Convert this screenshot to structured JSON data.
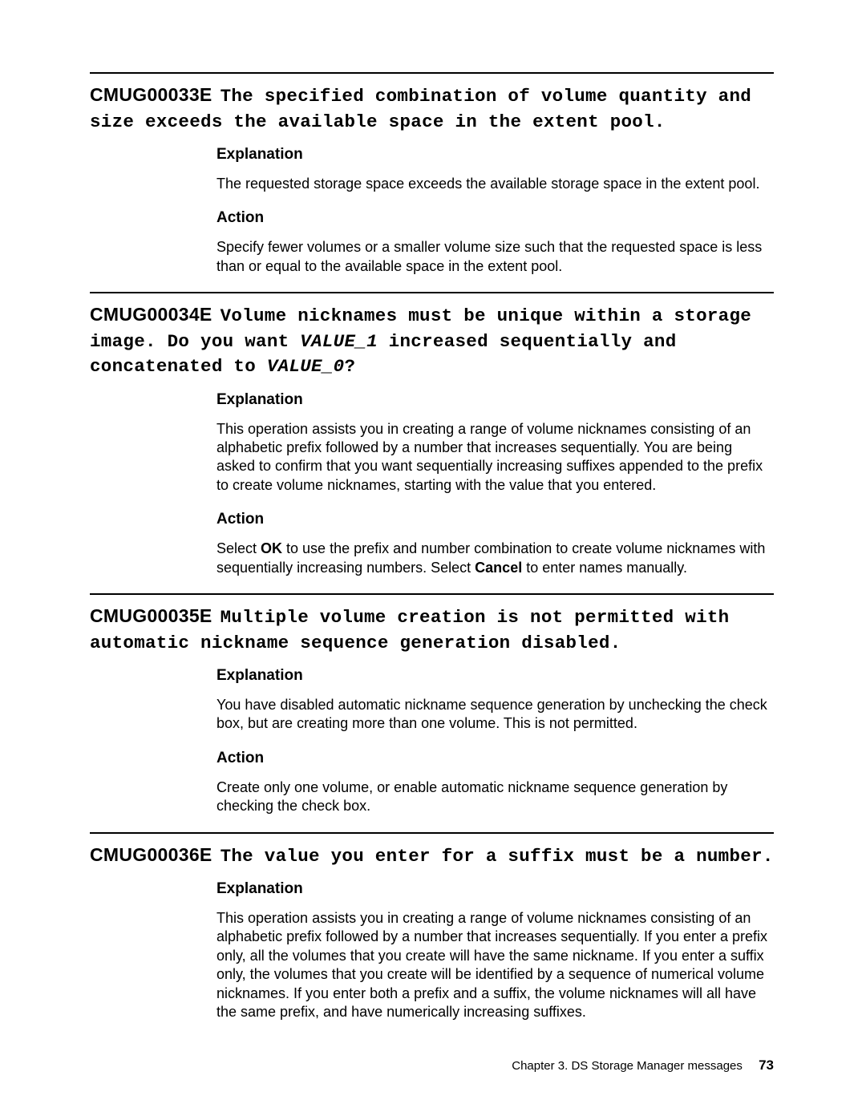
{
  "entries": [
    {
      "code": "CMUG00033E",
      "title_parts": [
        {
          "t": "The specified combination of volume quantity and size exceeds the available space in the extent pool.",
          "style": "plain"
        }
      ],
      "sections": [
        {
          "heading": "Explanation",
          "html": "The requested storage space exceeds the available storage space in the extent pool."
        },
        {
          "heading": "Action",
          "html": "Specify fewer volumes or a smaller volume size such that the requested space is less than or equal to the available space in the extent pool."
        }
      ]
    },
    {
      "code": "CMUG00034E",
      "title_parts": [
        {
          "t": "Volume nicknames must be unique within a storage image. Do you want ",
          "style": "plain"
        },
        {
          "t": "VALUE_1",
          "style": "var"
        },
        {
          "t": " increased sequentially and concatenated to ",
          "style": "plain"
        },
        {
          "t": "VALUE_0",
          "style": "var"
        },
        {
          "t": "?",
          "style": "plain"
        }
      ],
      "sections": [
        {
          "heading": "Explanation",
          "html": "This operation assists you in creating a range of volume nicknames consisting of an alphabetic prefix followed by a number that increases sequentially. You are being asked to confirm that you want sequentially increasing suffixes appended to the prefix to create volume nicknames, starting with the value that you entered."
        },
        {
          "heading": "Action",
          "html": "Select <b>OK</b> to use the prefix and number combination to create volume nicknames with sequentially increasing numbers. Select <b>Cancel</b> to enter names manually."
        }
      ]
    },
    {
      "code": "CMUG00035E",
      "title_parts": [
        {
          "t": "Multiple volume creation is not permitted with automatic nickname sequence generation disabled.",
          "style": "plain"
        }
      ],
      "sections": [
        {
          "heading": "Explanation",
          "html": "You have disabled automatic nickname sequence generation by unchecking the check box, but are creating more than one volume. This is not permitted."
        },
        {
          "heading": "Action",
          "html": "Create only one volume, or enable automatic nickname sequence generation by checking the check box."
        }
      ]
    },
    {
      "code": "CMUG00036E",
      "title_parts": [
        {
          "t": "The value you enter for a suffix must be a number.",
          "style": "plain"
        }
      ],
      "sections": [
        {
          "heading": "Explanation",
          "html": "This operation assists you in creating a range of volume nicknames consisting of an alphabetic prefix followed by a number that increases sequentially. If you enter a prefix only, all the volumes that you create will have the same nickname. If you enter a suffix only, the volumes that you create will be identified by a sequence of numerical volume nicknames. If you enter both a prefix and a suffix, the volume nicknames will all have the same prefix, and have numerically increasing suffixes."
        }
      ]
    }
  ],
  "footer": {
    "chapter": "Chapter 3. DS Storage Manager messages",
    "page": "73"
  }
}
